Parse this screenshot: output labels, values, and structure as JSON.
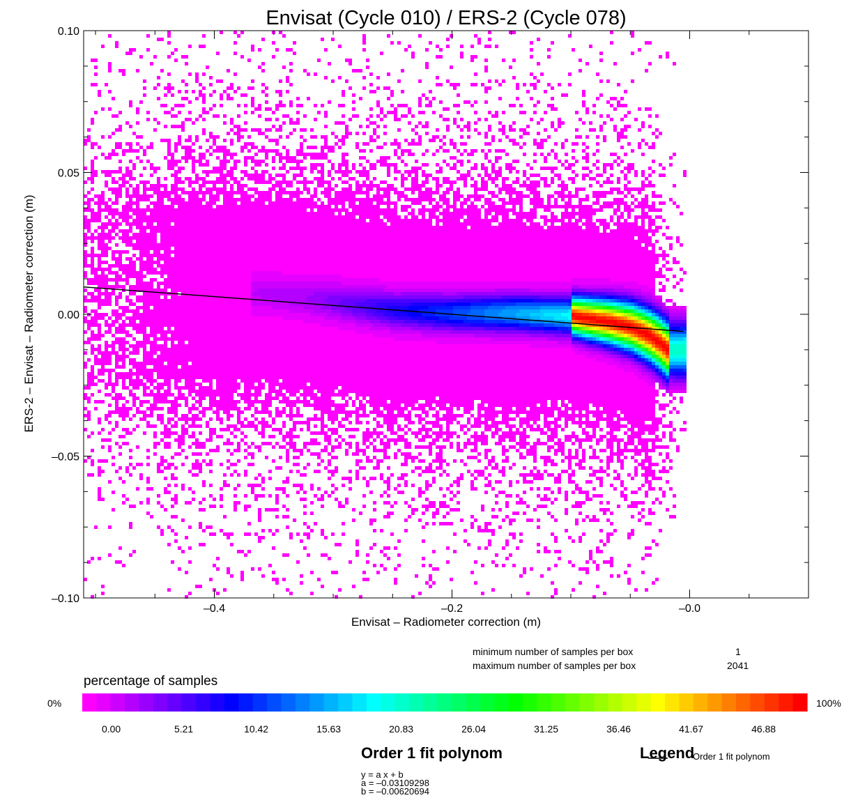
{
  "chart_data": {
    "type": "heatmap",
    "title": "Envisat (Cycle 010) / ERS-2 (Cycle 078)",
    "xlabel": "Envisat – Radiometer correction (m)",
    "ylabel": "ERS-2 – Envisat – Radiometer correction (m)",
    "xlim": [
      -0.51,
      0.1
    ],
    "ylim": [
      -0.1,
      0.1
    ],
    "x_ticks": [
      {
        "value": -0.4,
        "label": "–0.4"
      },
      {
        "value": -0.2,
        "label": "–0.2"
      },
      {
        "value": 0.0,
        "label": "–0.0"
      }
    ],
    "y_ticks": [
      {
        "value": 0.1,
        "label": "0.10"
      },
      {
        "value": 0.05,
        "label": "0.05"
      },
      {
        "value": 0.0,
        "label": "0.00"
      },
      {
        "value": -0.05,
        "label": "–0.05"
      },
      {
        "value": -0.1,
        "label": "–0.10"
      }
    ],
    "density_ridge": {
      "x": [
        -0.36,
        -0.3,
        -0.25,
        -0.2,
        -0.15,
        -0.1,
        -0.07,
        -0.05,
        -0.035,
        -0.025,
        -0.02
      ],
      "y": [
        0.008,
        0.005,
        0.002,
        0.001,
        0.001,
        0.0,
        -0.002,
        -0.004,
        -0.007,
        -0.01,
        -0.012
      ]
    },
    "fit": {
      "name": "Order 1 fit polynom",
      "a": -0.03109298,
      "b": -0.00620694,
      "x_range": [
        -0.51,
        -0.005
      ],
      "color": "#000000"
    },
    "colorbar": {
      "title": "percentage of samples",
      "min_label": "0%",
      "max_label": "100%",
      "tick_labels": [
        "0.00",
        "5.21",
        "10.42",
        "15.63",
        "20.83",
        "26.04",
        "31.25",
        "36.46",
        "41.67",
        "46.88"
      ],
      "colors": [
        "#ff00ff",
        "#e600ff",
        "#cc00ff",
        "#b300ff",
        "#9900ff",
        "#7f00ff",
        "#6600ff",
        "#4c00ff",
        "#3300ff",
        "#1a00ff",
        "#0000ff",
        "#001aff",
        "#0033ff",
        "#004cff",
        "#0066ff",
        "#007fff",
        "#0099ff",
        "#00b3ff",
        "#00ccff",
        "#00e6ff",
        "#00ffff",
        "#00ffe6",
        "#00ffcc",
        "#00ffb3",
        "#00ff99",
        "#00ff7f",
        "#00ff66",
        "#00ff4c",
        "#00ff33",
        "#00ff1a",
        "#00ff00",
        "#1aff00",
        "#33ff00",
        "#4cff00",
        "#66ff00",
        "#7fff00",
        "#99ff00",
        "#b3ff00",
        "#ccff00",
        "#e6ff00",
        "#ffff00",
        "#ffe600",
        "#ffcc00",
        "#ffb300",
        "#ff9900",
        "#ff7f00",
        "#ff6600",
        "#ff4c00",
        "#ff3300",
        "#ff1a00",
        "#ff0000"
      ]
    }
  },
  "stats": {
    "min_label": "minimum number of samples per box",
    "min_value": "1",
    "max_label": "maximum number of samples per box",
    "max_value": "2041"
  },
  "fit_box": {
    "title": "Order 1 fit polynom",
    "lines": [
      "y = a x + b",
      "a = –0.03109298",
      "b = –0.00620694"
    ]
  },
  "legend": {
    "title": "Legend",
    "entry": "Order 1 fit polynom"
  }
}
